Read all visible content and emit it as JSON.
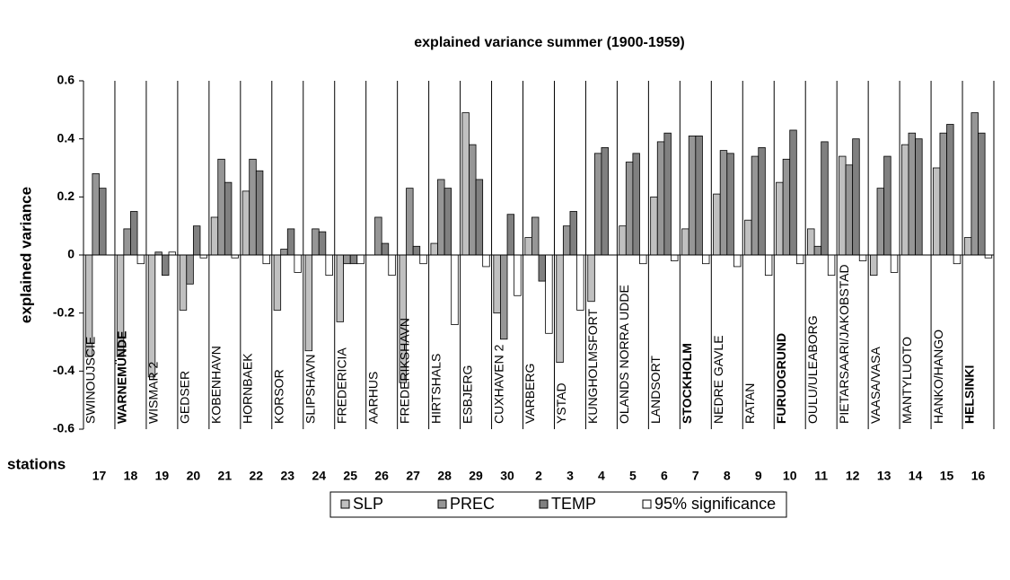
{
  "chart_data": {
    "type": "bar",
    "title": "explained variance summer (1900-1959)",
    "y_label": "explained variance",
    "x_label": "stations",
    "categories": [
      "SWINOUJSCIE",
      "WARNEMÜNDE",
      "WISMAR 2",
      "GEDSER",
      "KOBENHAVN",
      "HORNBAEK",
      "KORSOR",
      "SLIPSHAVN",
      "FREDERICIA",
      "AARHUS",
      "FREDERIKSHAVN",
      "HIRTSHALS",
      "ESBJERG",
      "CUXHAVEN 2",
      "VARBERG",
      "YSTAD",
      "KUNGHOLMSFORT",
      "OLANDS NORRA UDDE",
      "LANDSORT",
      "STOCKHOLM",
      "NEDRE GAVLE",
      "RATAN",
      "FURUOGRUND",
      "OULU/ULEABORG",
      "PIETARSAARI/JAKOBSTAD",
      "VAASA/VASA",
      "MANTYLUOTO",
      "HANKO/HANGO",
      "HELSINKI"
    ],
    "station_numbers": [
      17,
      18,
      19,
      20,
      21,
      22,
      23,
      24,
      25,
      26,
      27,
      28,
      29,
      30,
      2,
      3,
      4,
      5,
      6,
      7,
      8,
      9,
      10,
      11,
      12,
      13,
      14,
      15,
      16
    ],
    "bold_indices": [
      1,
      19,
      22,
      28
    ],
    "series": [
      {
        "name": "SLP",
        "color": "#c0c0c0",
        "values": [
          -0.35,
          -0.35,
          -0.42,
          -0.19,
          0.13,
          0.22,
          -0.19,
          -0.33,
          -0.23,
          0,
          -0.44,
          0.04,
          0.49,
          -0.2,
          0.06,
          -0.37,
          -0.16,
          0.1,
          0.2,
          0.09,
          0.21,
          0.12,
          0.25,
          0.09,
          0.34,
          -0.07,
          0.38,
          0.3,
          0.06
        ]
      },
      {
        "name": "PREC",
        "color": "#969696",
        "values": [
          0.28,
          0.09,
          0.01,
          -0.1,
          0.33,
          0.33,
          0.02,
          0.09,
          -0.03,
          0.13,
          0.23,
          0.26,
          0.38,
          -0.29,
          0.13,
          0.1,
          0.35,
          0.32,
          0.39,
          0.41,
          0.36,
          0.34,
          0.33,
          0.03,
          0.31,
          0.23,
          0.42,
          0.42,
          0.49
        ]
      },
      {
        "name": "TEMP",
        "color": "#808080",
        "values": [
          0.23,
          0.15,
          -0.07,
          0.1,
          0.25,
          0.29,
          0.09,
          0.08,
          -0.03,
          0.04,
          0.03,
          0.23,
          0.26,
          0.14,
          -0.09,
          0.15,
          0.37,
          0.35,
          0.42,
          0.41,
          0.35,
          0.37,
          0.43,
          0.39,
          0.4,
          0.34,
          0.4,
          0.45,
          0.42
        ]
      },
      {
        "name": "95% significance",
        "color": "#ffffff",
        "values": [
          0,
          -0.03,
          0.01,
          -0.01,
          -0.01,
          -0.03,
          -0.06,
          -0.07,
          -0.03,
          -0.07,
          -0.03,
          -0.24,
          -0.04,
          -0.14,
          -0.27,
          -0.19,
          0,
          -0.03,
          -0.02,
          -0.03,
          -0.04,
          -0.07,
          -0.03,
          -0.07,
          -0.02,
          -0.06,
          0,
          -0.03,
          -0.01
        ]
      }
    ],
    "ylim": [
      -0.6,
      0.6
    ],
    "yticks": [
      -0.6,
      -0.4,
      -0.2,
      0,
      0.2,
      0.4,
      0.6
    ],
    "legend": "bottom"
  }
}
